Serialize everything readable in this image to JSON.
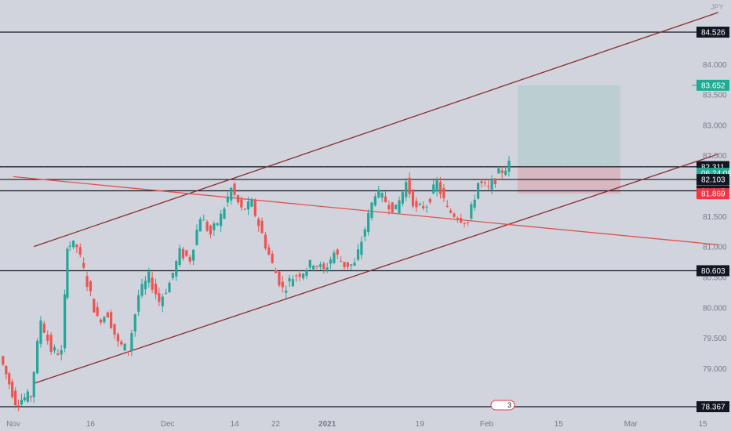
{
  "header": {
    "symbol_fragment": "JPY"
  },
  "chart_data": {
    "type": "candlestick",
    "title": "",
    "xlabel": "",
    "ylabel": "",
    "ylim": [
      78.3,
      84.85
    ],
    "y_ticks": [
      "79.000",
      "79.500",
      "80.000",
      "80.500",
      "81.000",
      "81.500",
      "82.000",
      "82.500",
      "83.000",
      "83.500",
      "84.000"
    ],
    "x_ticks": [
      {
        "label": "Nov",
        "day": 0
      },
      {
        "label": "16",
        "day": 15
      },
      {
        "label": "Dec",
        "day": 30
      },
      {
        "label": "14",
        "day": 43
      },
      {
        "label": "22",
        "day": 51
      },
      {
        "label": "2021",
        "day": 61
      },
      {
        "label": "19",
        "day": 79
      },
      {
        "label": "Feb",
        "day": 92
      },
      {
        "label": "15",
        "day": 106
      },
      {
        "label": "Mar",
        "day": 120
      },
      {
        "label": "15",
        "day": 134
      }
    ],
    "horizontal_levels": [
      {
        "label": "84.526",
        "price": 84.526,
        "kind": "line"
      },
      {
        "label": "83.652",
        "price": 83.652,
        "kind": "target"
      },
      {
        "label": "82.320",
        "price": 82.32,
        "kind": "current"
      },
      {
        "label": "82.311",
        "price": 82.311,
        "kind": "line"
      },
      {
        "label": "06:24:09",
        "price": 82.205,
        "kind": "countdown"
      },
      {
        "label": "82.103",
        "price": 82.103,
        "kind": "line"
      },
      {
        "label": "81.917",
        "price": 81.917,
        "kind": "line"
      },
      {
        "label": "81.869",
        "price": 81.869,
        "kind": "stop"
      },
      {
        "label": "80.603",
        "price": 80.603,
        "kind": "line"
      },
      {
        "label": "78.367",
        "price": 78.367,
        "kind": "line"
      }
    ],
    "trendlines": [
      {
        "name": "channel-top",
        "color": "#8b2a2e",
        "points": [
          [
            4,
            81.0
          ],
          [
            137,
            84.85
          ]
        ]
      },
      {
        "name": "channel-bottom",
        "color": "#8b2a2e",
        "points": [
          [
            4,
            78.75
          ],
          [
            137,
            82.52
          ]
        ]
      },
      {
        "name": "descending-line",
        "color": "#e0524f",
        "points": [
          [
            0,
            82.15
          ],
          [
            137,
            81.03
          ]
        ]
      }
    ],
    "position": {
      "start_day": 98,
      "end_day": 118,
      "entry": 82.32,
      "target": 83.652,
      "stop": 81.869
    },
    "candles_points": [
      [
        -2,
        79.2
      ],
      [
        1,
        78.45
      ],
      [
        4,
        78.55
      ],
      [
        6,
        79.8
      ],
      [
        8,
        79.3
      ],
      [
        10,
        79.25
      ],
      [
        11,
        81.05
      ],
      [
        13,
        81.0
      ],
      [
        15,
        80.4
      ],
      [
        17,
        79.8
      ],
      [
        19,
        79.9
      ],
      [
        21,
        79.4
      ],
      [
        23,
        79.3
      ],
      [
        25,
        80.2
      ],
      [
        27,
        80.5
      ],
      [
        29,
        80.1
      ],
      [
        31,
        80.4
      ],
      [
        33,
        80.9
      ],
      [
        35,
        80.8
      ],
      [
        37,
        81.5
      ],
      [
        39,
        81.2
      ],
      [
        41,
        81.5
      ],
      [
        43,
        81.95
      ],
      [
        45,
        81.6
      ],
      [
        47,
        81.7
      ],
      [
        49,
        81.2
      ],
      [
        51,
        80.7
      ],
      [
        53,
        80.3
      ],
      [
        55,
        80.5
      ],
      [
        57,
        80.6
      ],
      [
        59,
        80.75
      ],
      [
        61,
        80.6
      ],
      [
        63,
        80.9
      ],
      [
        65,
        80.7
      ],
      [
        67,
        80.7
      ],
      [
        69,
        81.3
      ],
      [
        71,
        81.9
      ],
      [
        73,
        81.75
      ],
      [
        75,
        81.6
      ],
      [
        77,
        82.05
      ],
      [
        79,
        81.6
      ],
      [
        81,
        81.7
      ],
      [
        83,
        82.05
      ],
      [
        85,
        81.6
      ],
      [
        87,
        81.5
      ],
      [
        89,
        81.4
      ],
      [
        91,
        82.05
      ],
      [
        93,
        81.95
      ],
      [
        95,
        82.2
      ],
      [
        97,
        82.35
      ]
    ],
    "candles": [],
    "colors": {
      "up": "#26a69a",
      "down": "#ef5350",
      "channel": "#8b2a2e",
      "descending": "#e0524f",
      "target": "#22ab94",
      "stop": "#f23645",
      "line": "#131722",
      "grid_bg": "#d1d4dc"
    },
    "x_range_days": [
      -2,
      148
    ],
    "annotation_badge": "3"
  }
}
